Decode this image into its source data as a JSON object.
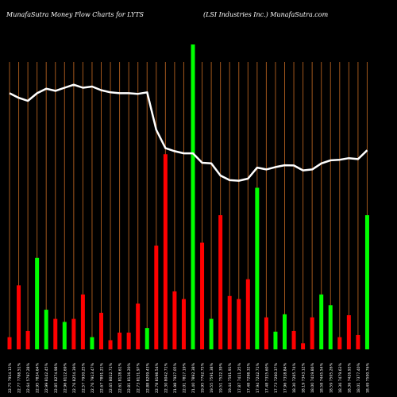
{
  "header": {
    "left": "MunafaSutra  Money Flow  Charts for LYTS",
    "right": "(LSI Industries Inc.) MunafaSutra.com"
  },
  "colors": {
    "background": "#000000",
    "grid": "#a0561c",
    "up_bar": "#00ff00",
    "down_bar": "#ff0000",
    "flow_line": "#ffffff",
    "text": "#ffffff"
  },
  "chart_data": {
    "type": "bar",
    "title": "Money Flow Charts for LYTS",
    "subtitle": "(LSI Industries Inc.)",
    "series": [
      {
        "kind": "volume-bars",
        "values": [
          0.04,
          0.21,
          0.06,
          0.3,
          0.13,
          0.1,
          0.09,
          0.1,
          0.18,
          0.04,
          0.12,
          0.03,
          0.055,
          0.055,
          0.15,
          0.07,
          0.34,
          0.64,
          0.19,
          0.165,
          1.0,
          0.35,
          0.1,
          0.44,
          0.175,
          0.165,
          0.23,
          0.53,
          0.105,
          0.058,
          0.115,
          0.06,
          0.02,
          0.105,
          0.18,
          0.145,
          0.04,
          0.112,
          0.047,
          0.44
        ],
        "colors": [
          "red",
          "red",
          "red",
          "green",
          "green",
          "red",
          "green",
          "red",
          "red",
          "green",
          "red",
          "red",
          "red",
          "red",
          "red",
          "green",
          "red",
          "red",
          "red",
          "red",
          "green",
          "red",
          "green",
          "red",
          "red",
          "red",
          "red",
          "green",
          "red",
          "green",
          "green",
          "red",
          "red",
          "red",
          "green",
          "green",
          "red",
          "red",
          "red",
          "green"
        ]
      },
      {
        "kind": "money-flow-line",
        "values": [
          0.84,
          0.825,
          0.815,
          0.84,
          0.855,
          0.848,
          0.858,
          0.868,
          0.858,
          0.862,
          0.85,
          0.843,
          0.84,
          0.84,
          0.838,
          0.843,
          0.72,
          0.66,
          0.65,
          0.643,
          0.643,
          0.612,
          0.61,
          0.57,
          0.555,
          0.553,
          0.56,
          0.596,
          0.59,
          0.598,
          0.604,
          0.603,
          0.587,
          0.59,
          0.61,
          0.62,
          0.622,
          0.627,
          0.624,
          0.653
        ]
      }
    ],
    "categories": [
      "22 Fri Aug 2025",
      "21 Thu Aug 2025",
      "20 Wed Aug 2025",
      "19 Tue Aug 2025",
      "18 Mon Aug 2025",
      "15 Fri Aug 2025",
      "14 Thu Aug 2025",
      "13 Wed Aug 2025",
      "12 Tue Aug 2025",
      "11 Mon Aug 2025",
      "08 Fri Aug 2025",
      "07 Thu Aug 2025",
      "06 Wed Aug 2025",
      "05 Tue Aug 2025",
      "04 Mon Aug 2025",
      "01 Fri Aug 2025",
      "31 Thu Jul 2025",
      "30 Wed Jul 2025",
      "29 Tue Jul 2025",
      "28 Mon Jul 2025",
      "25 Fri Jul 2025",
      "24 Thu Jul 2025",
      "23 Wed Jul 2025",
      "22 Tue Jul 2025",
      "21 Mon Jul 2025",
      "18 Fri Jul 2025",
      "17 Thu Jul 2025",
      "16 Wed Jul 2025",
      "15 Tue Jul 2025",
      "14 Mon Jul 2025",
      "11 Fri Jul 2025",
      "10 Thu Jul 2025",
      "09 Wed Jul 2025",
      "08 Tue Jul 2025",
      "07 Mon Jul 2025",
      "03 Thu Jul 2025",
      "02 Wed Jul 2025",
      "01 Tue Jul 2025",
      "30 Mon Jun 2025",
      "27 Fri Jun 2025"
    ],
    "tick_labels": [
      "22.75 7914.13%",
      "22.77 7788.51%",
      "22.64 5797.28%",
      "22.95 7834.64%",
      "22.99 8142.45%",
      "22.85 8274.98%",
      "22.96 8112.69%",
      "22.76 8254.39%",
      "22.57 7930.25%",
      "22.76 7913.47%",
      "22.67 7891.21%",
      "22.65 8012.71%",
      "22.61 8128.61%",
      "22.81 8136.20%",
      "22.73 8131.97%",
      "22.88 8209.43%",
      "22.78 8198.54%",
      "22.30 8042.71%",
      "21.98 7927.05%",
      "22.01 7817.19%",
      "21.40 7892.38%",
      "19.95 7762.75%",
      "19.55 7591.38%",
      "19.51 7522.39%",
      "19.44 7581.91%",
      "17.87 7411.25%",
      "17.48 7298.32%",
      "17.94 7242.71%",
      "17.48 7315.60%",
      "17.73 7260.37%",
      "17.96 7318.84%",
      "18.30 7265.74%",
      "18.19 7343.12%",
      "18.00 7419.86%",
      "18.58 7445.54%",
      "18.59 7505.26%",
      "18.36 7479.63%",
      "18.36 7426.93%",
      "18.01 7377.40%",
      "18.49 7500.76%"
    ],
    "grid": true,
    "legend": "none"
  }
}
